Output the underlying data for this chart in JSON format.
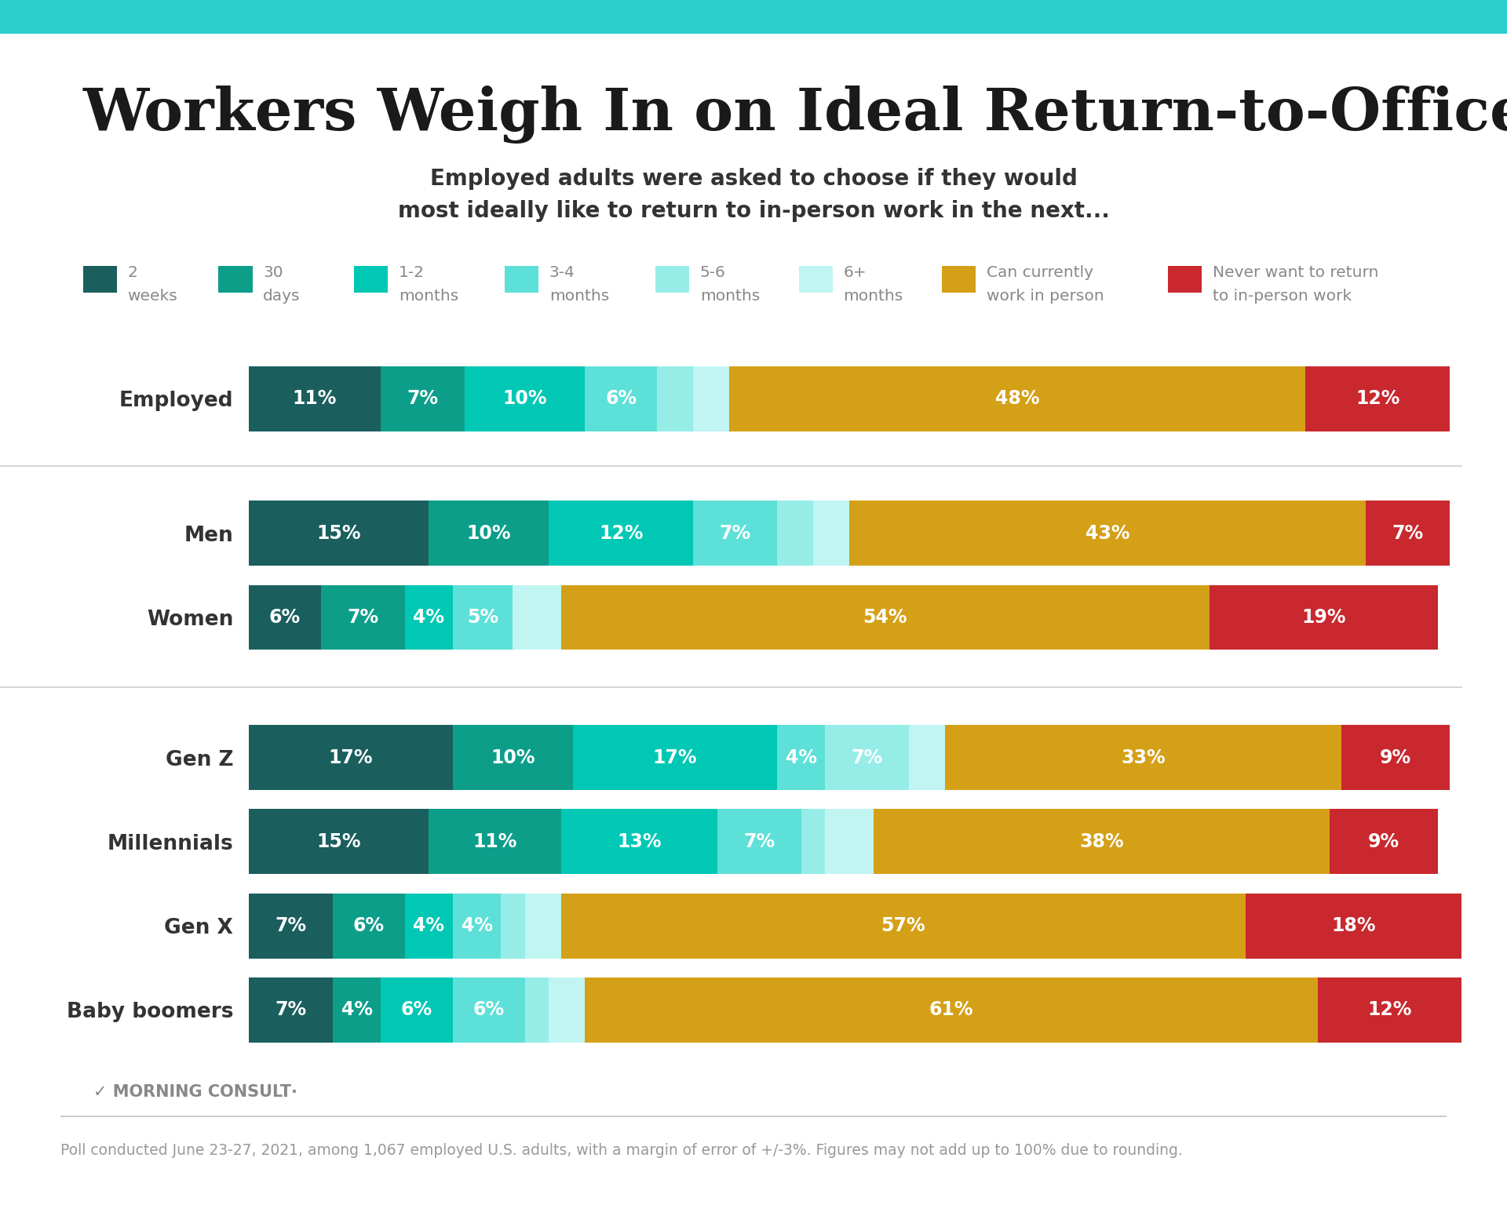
{
  "title": "Workers Weigh In on Ideal Return-to-Office Timeline",
  "subtitle": "Employed adults were asked to choose if they would\nmost ideally like to return to in-person work in the next...",
  "footnote": "Poll conducted June 23-27, 2021, among 1,067 employed U.S. adults, with a margin of error of +/-3%. Figures may not add up to 100% due to rounding.",
  "categories": [
    "Employed",
    "Men",
    "Women",
    "Gen Z",
    "Millennials",
    "Gen X",
    "Baby boomers"
  ],
  "data": {
    "Employed": [
      11,
      7,
      10,
      6,
      3,
      3,
      48,
      12
    ],
    "Men": [
      15,
      10,
      12,
      7,
      3,
      3,
      43,
      7
    ],
    "Women": [
      6,
      7,
      4,
      5,
      0,
      4,
      54,
      19
    ],
    "Gen Z": [
      17,
      10,
      17,
      4,
      7,
      3,
      33,
      9
    ],
    "Millennials": [
      15,
      11,
      13,
      7,
      2,
      4,
      38,
      9
    ],
    "Gen X": [
      7,
      6,
      4,
      4,
      2,
      3,
      57,
      18
    ],
    "Baby boomers": [
      7,
      4,
      6,
      6,
      2,
      3,
      61,
      12
    ]
  },
  "display_labels": {
    "Employed": [
      11,
      7,
      10,
      6,
      0,
      0,
      48,
      12
    ],
    "Men": [
      15,
      10,
      12,
      7,
      0,
      0,
      43,
      7
    ],
    "Women": [
      6,
      7,
      4,
      5,
      0,
      0,
      54,
      19
    ],
    "Gen Z": [
      17,
      10,
      17,
      4,
      7,
      0,
      33,
      9
    ],
    "Millennials": [
      15,
      11,
      13,
      7,
      0,
      0,
      38,
      9
    ],
    "Gen X": [
      7,
      6,
      4,
      4,
      0,
      0,
      57,
      18
    ],
    "Baby boomers": [
      7,
      4,
      6,
      6,
      0,
      0,
      61,
      12
    ]
  },
  "segment_colors": [
    "#1a5f5e",
    "#0d9e8a",
    "#00c8b4",
    "#5de0d8",
    "#96ede8",
    "#c0f5f2",
    "#d4a017",
    "#c8282e"
  ],
  "legend_labels_row1": [
    "2\nweeks",
    "30\ndays",
    "1-2\nmonths",
    "3-4\nmonths",
    "5-6\nmonths",
    "6+\nmonths"
  ],
  "legend_labels_row2": [
    "Can currently\nwork in person",
    "Never want to return\nto in-person work"
  ],
  "background_color": "#ffffff",
  "text_color": "#333333",
  "label_color_light": "#ffffff",
  "title_color": "#1a1a1a",
  "top_bar_color": "#2ecece",
  "separator_color": "#cccccc",
  "legend_text_color": "#888888",
  "footnote_color": "#999999",
  "morning_consult_color": "#888888"
}
